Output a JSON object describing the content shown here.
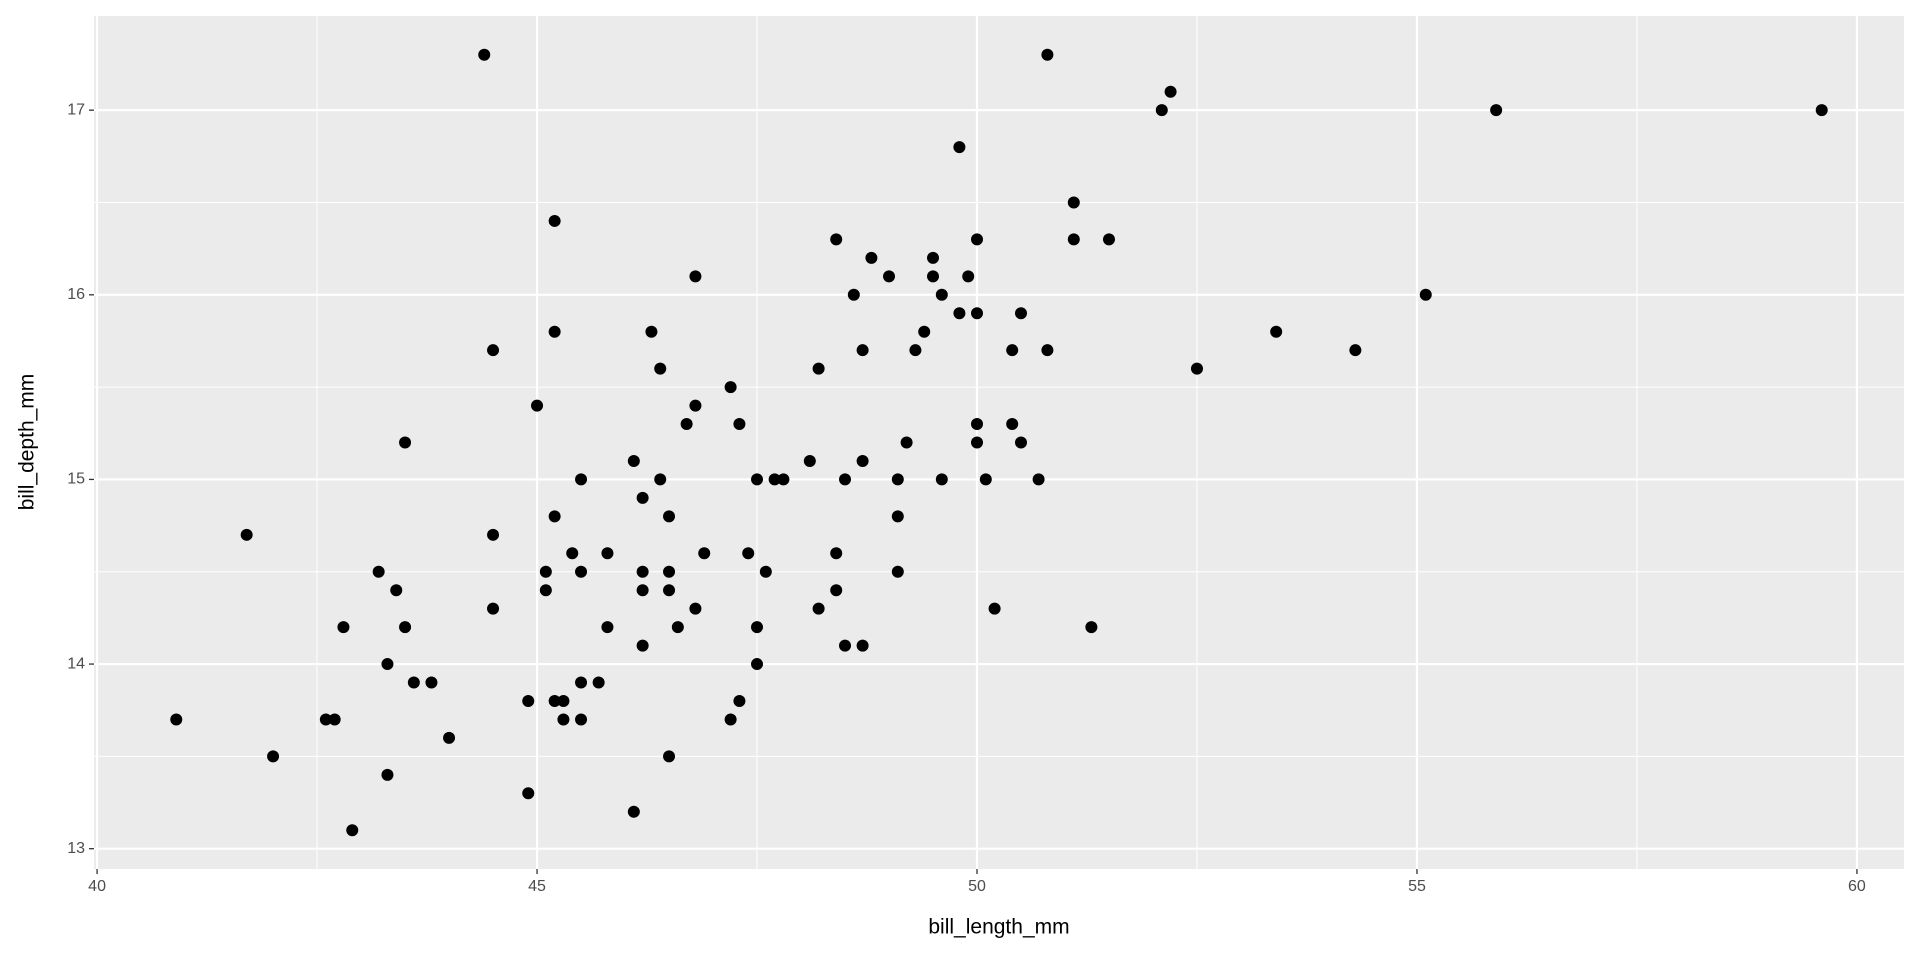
{
  "chart_data": {
    "type": "scatter",
    "x_label": "bill_length_mm",
    "y_label": "bill_depth_mm",
    "xlim": [
      39.965,
      60.535
    ],
    "ylim": [
      12.89,
      17.51
    ],
    "xticks": [
      40,
      45,
      50,
      55,
      60
    ],
    "yticks": [
      13,
      14,
      15,
      16,
      17
    ],
    "x_minor_grid": [
      42.5,
      47.5,
      52.5,
      57.5
    ],
    "y_minor_grid": [
      13.5,
      14.5,
      15.5,
      16.5
    ],
    "grid": true,
    "color": "#000000",
    "background": "#ebebeb",
    "series": [
      {
        "name": "points",
        "x": [
          44.4,
          50.8,
          52.1,
          52.2,
          55.9,
          59.6,
          49.8,
          51.1,
          45.2,
          48.4,
          50.0,
          51.1,
          51.5,
          48.8,
          49.5,
          46.8,
          49.0,
          49.5,
          49.9,
          48.6,
          49.6,
          55.1,
          49.8,
          50.0,
          50.5,
          45.2,
          46.3,
          49.4,
          53.4,
          44.5,
          48.7,
          49.3,
          50.4,
          50.8,
          54.3,
          46.4,
          48.2,
          52.5,
          47.2,
          45.0,
          46.8,
          43.5,
          46.7,
          47.3,
          50.4,
          50.0,
          49.2,
          50.0,
          50.5,
          46.1,
          48.1,
          48.7,
          45.5,
          46.4,
          47.5,
          47.7,
          47.8,
          48.5,
          49.1,
          49.6,
          50.1,
          50.7,
          41.7,
          44.5,
          46.2,
          45.2,
          46.5,
          49.1,
          45.4,
          45.8,
          46.9,
          47.4,
          48.4,
          43.2,
          45.1,
          45.5,
          46.2,
          46.5,
          47.6,
          49.1,
          43.4,
          45.1,
          46.2,
          46.5,
          48.4,
          44.5,
          46.8,
          48.2,
          50.2,
          42.8,
          43.5,
          45.8,
          46.6,
          47.5,
          51.3,
          46.2,
          48.5,
          48.7,
          43.3,
          47.5,
          43.6,
          43.8,
          45.5,
          45.7,
          44.9,
          45.2,
          45.3,
          47.3,
          40.9,
          42.6,
          42.7,
          45.3,
          45.5,
          47.2,
          44.0,
          42.0,
          46.5,
          43.3,
          44.9,
          46.1,
          42.9
        ],
        "values": [
          17.3,
          17.3,
          17.0,
          17.1,
          17.0,
          17.0,
          16.8,
          16.5,
          16.4,
          16.3,
          16.3,
          16.3,
          16.3,
          16.2,
          16.2,
          16.1,
          16.1,
          16.1,
          16.1,
          16.0,
          16.0,
          16.0,
          15.9,
          15.9,
          15.9,
          15.8,
          15.8,
          15.8,
          15.8,
          15.7,
          15.7,
          15.7,
          15.7,
          15.7,
          15.7,
          15.6,
          15.6,
          15.6,
          15.5,
          15.4,
          15.4,
          15.2,
          15.3,
          15.3,
          15.3,
          15.3,
          15.2,
          15.2,
          15.2,
          15.1,
          15.1,
          15.1,
          15.0,
          15.0,
          15.0,
          15.0,
          15.0,
          15.0,
          15.0,
          15.0,
          15.0,
          15.0,
          14.7,
          14.7,
          14.9,
          14.8,
          14.8,
          14.8,
          14.6,
          14.6,
          14.6,
          14.6,
          14.6,
          14.5,
          14.5,
          14.5,
          14.5,
          14.5,
          14.5,
          14.5,
          14.4,
          14.4,
          14.4,
          14.4,
          14.4,
          14.3,
          14.3,
          14.3,
          14.3,
          14.2,
          14.2,
          14.2,
          14.2,
          14.2,
          14.2,
          14.1,
          14.1,
          14.1,
          14.0,
          14.0,
          13.9,
          13.9,
          13.9,
          13.9,
          13.8,
          13.8,
          13.8,
          13.8,
          13.7,
          13.7,
          13.7,
          13.7,
          13.7,
          13.7,
          13.6,
          13.5,
          13.5,
          13.4,
          13.3,
          13.2,
          13.1
        ]
      }
    ]
  }
}
